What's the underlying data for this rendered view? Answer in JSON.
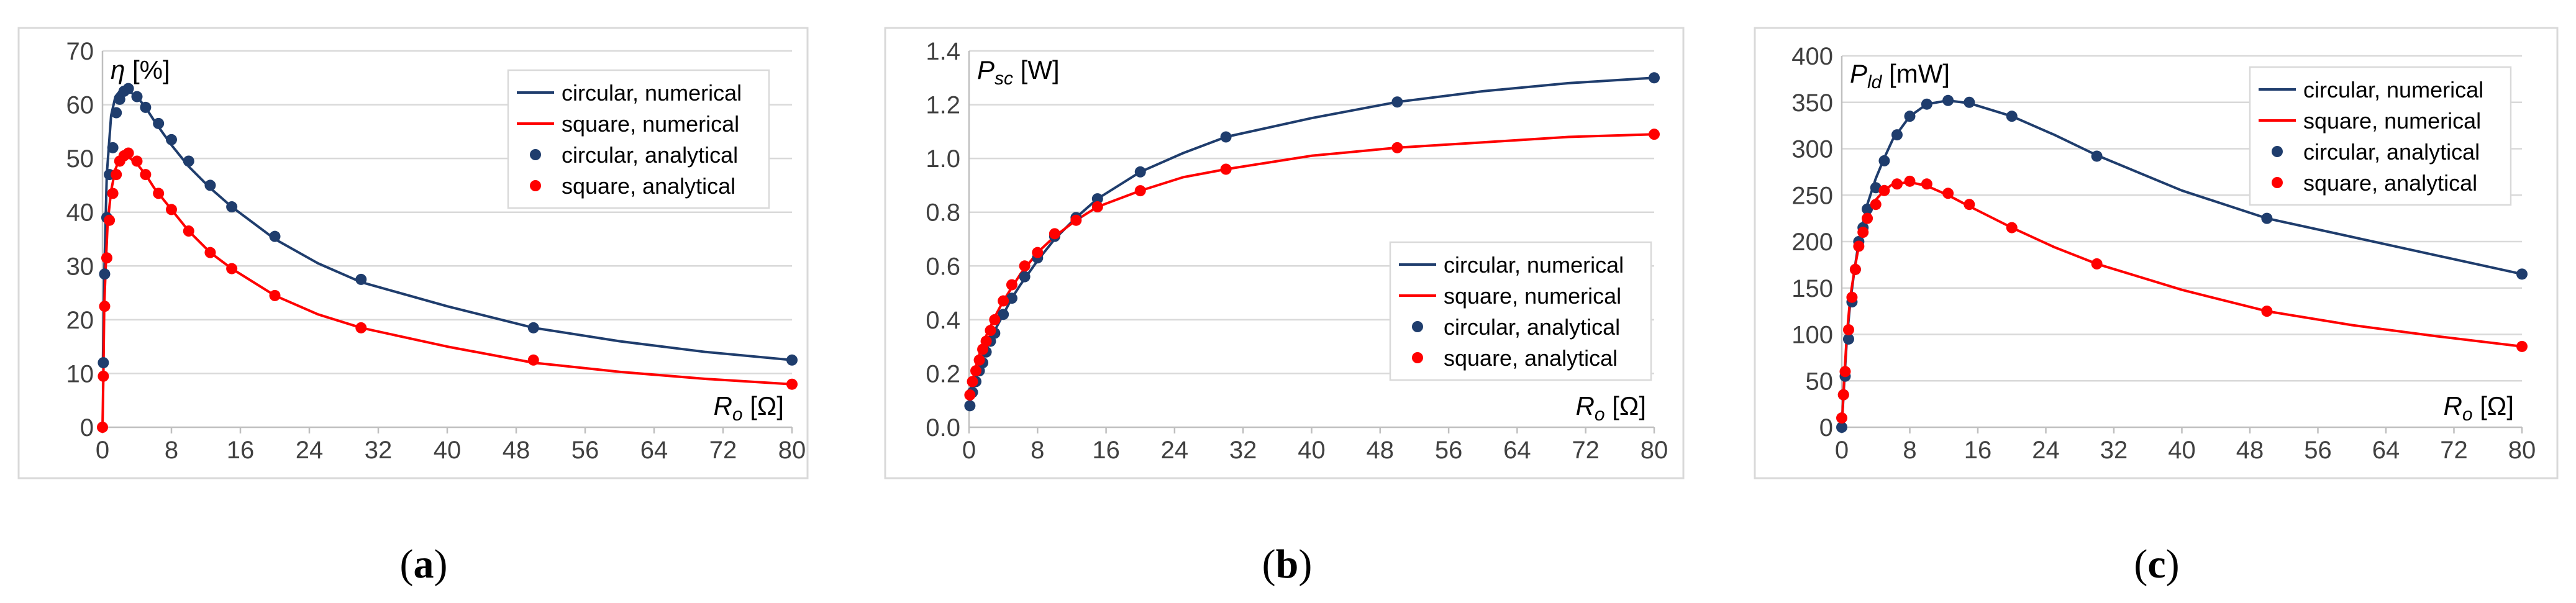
{
  "colors": {
    "circular": "#1f3d6d",
    "square": "#ff0000"
  },
  "chart_data": [
    {
      "type": "line",
      "panel_label": {
        "open": "(",
        "letter": "a",
        "close": ")"
      },
      "ylabel": {
        "symbol": "η",
        "sub": "",
        "unit": " [%]"
      },
      "xlabel": {
        "symbol": "R",
        "sub": "o",
        "unit": " [Ω]"
      },
      "ylim": [
        0,
        70
      ],
      "yticks": [
        0,
        10,
        20,
        30,
        40,
        50,
        60,
        70
      ],
      "xlim": [
        0,
        80
      ],
      "xticks": [
        0,
        8,
        16,
        24,
        32,
        40,
        48,
        56,
        64,
        72,
        80
      ],
      "grid": "horizontal",
      "legend_position": "top-right",
      "series": [
        {
          "name": "circular, numerical",
          "style": "line",
          "color_key": "circular",
          "x": [
            0.05,
            0.2,
            0.5,
            1,
            1.5,
            2,
            2.5,
            3,
            4,
            5,
            6,
            8,
            10,
            12.5,
            15,
            20,
            25,
            30,
            40,
            50,
            60,
            70,
            80
          ],
          "y": [
            12,
            28,
            47,
            58,
            61.5,
            62.5,
            62.8,
            62.6,
            61.5,
            59.5,
            57,
            52.5,
            48.5,
            44.5,
            41,
            35,
            30.5,
            27,
            22.5,
            18.5,
            16,
            14,
            12.5
          ]
        },
        {
          "name": "square, numerical",
          "style": "line",
          "color_key": "square",
          "x": [
            0,
            0.1,
            0.2,
            0.4,
            0.6,
            1,
            1.5,
            2,
            2.5,
            3,
            4,
            5,
            6,
            8,
            10,
            12.5,
            15,
            20,
            25,
            30,
            40,
            50,
            60,
            70,
            80
          ],
          "y": [
            0,
            9,
            22.5,
            31,
            38,
            44,
            48,
            50,
            50.5,
            50.3,
            49,
            47,
            44.5,
            40.5,
            36.5,
            32.5,
            29.5,
            24.5,
            21,
            18.5,
            15,
            12,
            10.3,
            9,
            8
          ]
        },
        {
          "name": "circular, analytical",
          "style": "markers",
          "color_key": "circular",
          "x": [
            0.1,
            0.25,
            0.5,
            0.8,
            1.2,
            1.6,
            2,
            2.5,
            3,
            4,
            5,
            6.5,
            8,
            10,
            12.5,
            15,
            20,
            30,
            50,
            80
          ],
          "y": [
            12,
            28.5,
            39,
            47,
            52,
            58.5,
            61,
            62.5,
            63,
            61.5,
            59.5,
            56.5,
            53.5,
            49.5,
            45,
            41,
            35.5,
            27.5,
            18.5,
            12.5
          ]
        },
        {
          "name": "square, analytical",
          "style": "markers",
          "color_key": "square",
          "x": [
            0,
            0.1,
            0.25,
            0.5,
            0.8,
            1.2,
            1.6,
            2,
            2.5,
            3,
            4,
            5,
            6.5,
            8,
            10,
            12.5,
            15,
            20,
            30,
            50,
            80
          ],
          "y": [
            0,
            9.5,
            22.5,
            31.5,
            38.5,
            43.5,
            47,
            49.5,
            50.5,
            51,
            49.5,
            47,
            43.5,
            40.5,
            36.5,
            32.5,
            29.5,
            24.5,
            18.5,
            12.5,
            8
          ]
        }
      ]
    },
    {
      "type": "line",
      "panel_label": {
        "open": "(",
        "letter": "b",
        "close": ")"
      },
      "ylabel": {
        "symbol": "P",
        "sub": "sc",
        "unit": " [W]"
      },
      "xlabel": {
        "symbol": "R",
        "sub": "o",
        "unit": " [Ω]"
      },
      "ylim": [
        0,
        1.4
      ],
      "yticks": [
        0.0,
        0.2,
        0.4,
        0.6,
        0.8,
        1.0,
        1.2,
        1.4
      ],
      "ytick_labels": [
        "0.0",
        "0.2",
        "0.4",
        "0.6",
        "0.8",
        "1.0",
        "1.2",
        "1.4"
      ],
      "xlim": [
        0,
        80
      ],
      "xticks": [
        0,
        8,
        16,
        24,
        32,
        40,
        48,
        56,
        64,
        72,
        80
      ],
      "grid": "horizontal",
      "legend_position": "bottom-right",
      "series": [
        {
          "name": "circular, numerical",
          "style": "line",
          "color_key": "circular",
          "x": [
            0.05,
            0.3,
            0.6,
            1,
            1.5,
            2,
            3,
            4,
            5,
            6,
            8,
            10,
            12.5,
            15,
            20,
            25,
            30,
            40,
            50,
            60,
            70,
            80
          ],
          "y": [
            0.08,
            0.12,
            0.16,
            0.2,
            0.25,
            0.29,
            0.36,
            0.42,
            0.48,
            0.53,
            0.62,
            0.7,
            0.78,
            0.85,
            0.95,
            1.02,
            1.08,
            1.15,
            1.21,
            1.25,
            1.28,
            1.3
          ]
        },
        {
          "name": "square, numerical",
          "style": "line",
          "color_key": "square",
          "x": [
            0.05,
            0.3,
            0.6,
            1,
            1.5,
            2,
            3,
            4,
            5,
            6,
            8,
            10,
            12.5,
            15,
            20,
            25,
            30,
            40,
            50,
            60,
            70,
            80
          ],
          "y": [
            0.11,
            0.16,
            0.2,
            0.25,
            0.3,
            0.34,
            0.41,
            0.47,
            0.52,
            0.57,
            0.65,
            0.71,
            0.77,
            0.82,
            0.88,
            0.93,
            0.96,
            1.01,
            1.04,
            1.06,
            1.08,
            1.09
          ]
        },
        {
          "name": "circular, analytical",
          "style": "markers",
          "color_key": "circular",
          "x": [
            0.1,
            0.4,
            0.8,
            1.2,
            1.6,
            2,
            2.5,
            3,
            4,
            5,
            6.5,
            8,
            10,
            12.5,
            15,
            20,
            30,
            50,
            80
          ],
          "y": [
            0.08,
            0.13,
            0.17,
            0.21,
            0.24,
            0.28,
            0.32,
            0.35,
            0.42,
            0.48,
            0.56,
            0.63,
            0.71,
            0.78,
            0.85,
            0.95,
            1.08,
            1.21,
            1.3
          ]
        },
        {
          "name": "square, analytical",
          "style": "markers",
          "color_key": "square",
          "x": [
            0.1,
            0.4,
            0.8,
            1.2,
            1.6,
            2,
            2.5,
            3,
            4,
            5,
            6.5,
            8,
            10,
            12.5,
            15,
            20,
            30,
            50,
            80
          ],
          "y": [
            0.12,
            0.17,
            0.21,
            0.25,
            0.29,
            0.32,
            0.36,
            0.4,
            0.47,
            0.53,
            0.6,
            0.65,
            0.72,
            0.77,
            0.82,
            0.88,
            0.96,
            1.04,
            1.09
          ]
        }
      ]
    },
    {
      "type": "line",
      "panel_label": {
        "open": "(",
        "letter": "c",
        "close": ")"
      },
      "ylabel": {
        "symbol": "P",
        "sub": "ld",
        "unit": " [mW]"
      },
      "xlabel": {
        "symbol": "R",
        "sub": "o",
        "unit": " [Ω]"
      },
      "ylim": [
        0,
        400
      ],
      "yticks": [
        0,
        50,
        100,
        150,
        200,
        250,
        300,
        350,
        400
      ],
      "xlim": [
        0,
        80
      ],
      "xticks": [
        0,
        8,
        16,
        24,
        32,
        40,
        48,
        56,
        64,
        72,
        80
      ],
      "grid": "horizontal",
      "legend_position": "top-right",
      "series": [
        {
          "name": "circular, numerical",
          "style": "line",
          "color_key": "circular",
          "x": [
            0,
            0.3,
            0.6,
            1,
            1.5,
            2,
            3,
            4,
            5,
            6,
            8,
            10,
            12.5,
            15,
            20,
            25,
            30,
            40,
            50,
            60,
            70,
            80
          ],
          "y": [
            0,
            50,
            95,
            135,
            170,
            200,
            240,
            268,
            290,
            310,
            335,
            348,
            352,
            349,
            335,
            315,
            293,
            255,
            225,
            205,
            185,
            165
          ]
        },
        {
          "name": "square, numerical",
          "style": "line",
          "color_key": "square",
          "x": [
            0,
            0.3,
            0.6,
            1,
            1.5,
            2,
            3,
            4,
            5,
            6,
            8,
            10,
            12.5,
            15,
            20,
            25,
            30,
            40,
            50,
            60,
            70,
            80
          ],
          "y": [
            0,
            55,
            100,
            140,
            170,
            195,
            225,
            245,
            255,
            262,
            264,
            260,
            250,
            238,
            215,
            194,
            176,
            148,
            125,
            110,
            98,
            87
          ]
        },
        {
          "name": "circular, analytical",
          "style": "markers",
          "color_key": "circular",
          "x": [
            0,
            0.2,
            0.4,
            0.8,
            1.2,
            1.6,
            2,
            2.5,
            3,
            4,
            5,
            6.5,
            8,
            10,
            12.5,
            15,
            20,
            30,
            50,
            80
          ],
          "y": [
            0,
            35,
            55,
            95,
            135,
            170,
            200,
            215,
            235,
            258,
            287,
            315,
            335,
            348,
            352,
            350,
            335,
            292,
            225,
            165
          ]
        },
        {
          "name": "square, analytical",
          "style": "markers",
          "color_key": "square",
          "x": [
            0,
            0.2,
            0.4,
            0.8,
            1.2,
            1.6,
            2,
            2.5,
            3,
            4,
            5,
            6.5,
            8,
            10,
            12.5,
            15,
            20,
            30,
            50,
            80
          ],
          "y": [
            10,
            35,
            60,
            105,
            140,
            170,
            195,
            210,
            225,
            240,
            255,
            262,
            265,
            262,
            252,
            240,
            215,
            176,
            125,
            87
          ]
        }
      ]
    }
  ]
}
